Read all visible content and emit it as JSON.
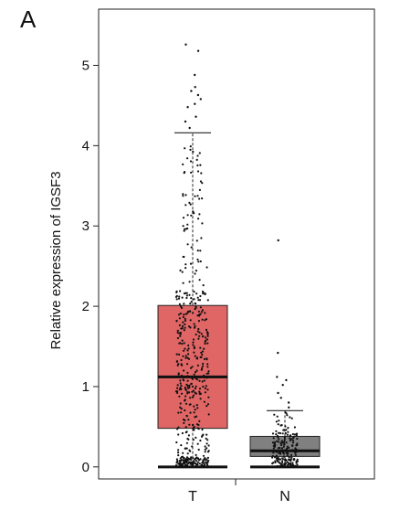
{
  "panel_label": "A",
  "chart_data": {
    "type": "boxplot",
    "ylabel": "Relative expression of IGSF3",
    "xlabel": "",
    "ylim": [
      -0.15,
      5.7
    ],
    "yticks": [
      0,
      1,
      2,
      3,
      4,
      5
    ],
    "categories": [
      "T",
      "N"
    ],
    "grid": false,
    "legend": "none",
    "series": [
      {
        "category": "T",
        "min": 0.0,
        "q1": 0.48,
        "median": 1.12,
        "q3": 2.01,
        "whisker_high": 4.16,
        "whisker_low": 0.0,
        "box_color": "#e06666",
        "outliers": [
          4.22,
          4.3,
          4.36,
          4.48,
          4.52,
          4.58,
          4.63,
          4.68,
          4.73,
          4.88,
          5.18,
          5.26
        ]
      },
      {
        "category": "N",
        "min": 0.0,
        "q1": 0.13,
        "median": 0.2,
        "q3": 0.38,
        "whisker_high": 0.7,
        "whisker_low": 0.0,
        "box_color": "#808080",
        "outliers": [
          0.74,
          0.8,
          0.86,
          0.92,
          1.02,
          1.08,
          1.12,
          1.42,
          2.82
        ]
      }
    ]
  }
}
